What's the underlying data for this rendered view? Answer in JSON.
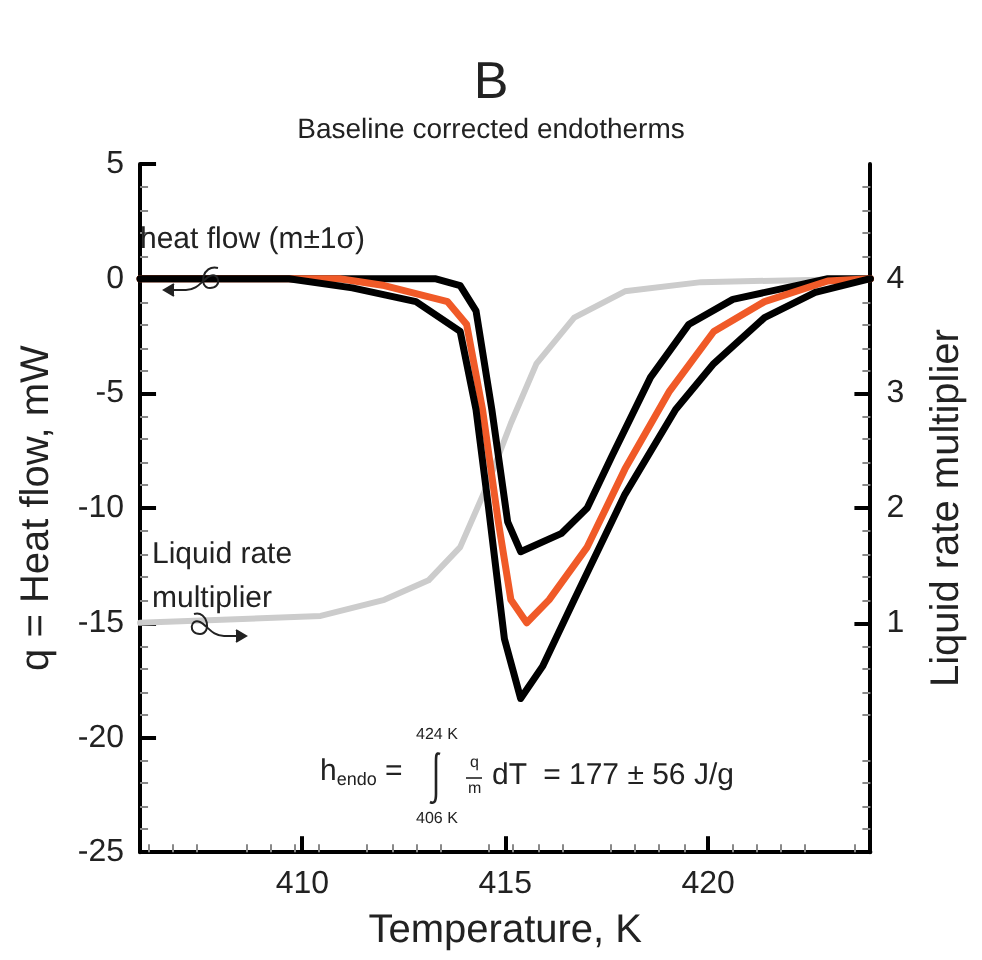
{
  "chart_data": {
    "type": "line",
    "title": "B",
    "subtitle": "Baseline corrected endotherms",
    "xlabel": "Temperature, K",
    "ylabel": "q = Heat flow, mW",
    "y2label": "Liquid rate multiplier",
    "xlim": [
      406,
      424
    ],
    "xticks": [
      410,
      415,
      420
    ],
    "ylim": [
      -25,
      5
    ],
    "yticks": [
      -25,
      -20,
      -15,
      -10,
      -5,
      0,
      5
    ],
    "y2lim": [
      -1,
      5
    ],
    "y2ticks": [
      1,
      2,
      3,
      4
    ],
    "marker": "none",
    "line_style": "solid",
    "annotations": [
      "heat flow (m±1σ)",
      "Liquid rate multiplier",
      "h$_{endo}$ =",
      "424 K",
      "406 K",
      "q",
      "m",
      "dT  = 177 ± 56 J/g"
    ],
    "series": [
      {
        "color": "#cccccc",
        "axis": "y2",
        "x": [
          406,
          410.45,
          412.02,
          413.11,
          413.89,
          414.52,
          415.14,
          415.77,
          416.7,
          417.95,
          419.83,
          424
        ],
        "values": [
          1.0,
          1.06,
          1.2,
          1.37,
          1.66,
          2.17,
          2.74,
          3.26,
          3.66,
          3.89,
          3.97,
          4.0
        ]
      },
      {
        "color": "#000000",
        "x": [
          406,
          413.27,
          413.89,
          414.28,
          414.67,
          415.06,
          415.38,
          416.39,
          417.02,
          417.64,
          418.58,
          419.52,
          420.61,
          422.17,
          422.95,
          424
        ],
        "values": [
          0,
          0,
          -0.3,
          -1.4,
          -5.7,
          -10.6,
          -11.9,
          -11.1,
          -10,
          -7.7,
          -4.3,
          -2,
          -0.9,
          -0.3,
          0,
          0
        ]
      },
      {
        "color": "#f05a28",
        "x": [
          406,
          410.92,
          412.02,
          413.58,
          414.05,
          414.44,
          414.83,
          415.14,
          415.53,
          416.08,
          417.02,
          417.95,
          419.05,
          420.14,
          421.39,
          422.95,
          424
        ],
        "values": [
          0,
          0,
          -0.3,
          -1,
          -2,
          -5.7,
          -10.6,
          -14,
          -15,
          -14,
          -11.7,
          -8.3,
          -4.9,
          -2.3,
          -1,
          -0.1,
          0
        ]
      },
      {
        "color": "#000000",
        "x": [
          406,
          409.67,
          411.23,
          412.8,
          413.89,
          414.28,
          414.59,
          414.98,
          415.38,
          415.92,
          416.7,
          417.95,
          419.2,
          420.14,
          421.39,
          422.64,
          424
        ],
        "values": [
          0,
          0,
          -0.4,
          -1,
          -2.3,
          -5.7,
          -10,
          -15.7,
          -18.3,
          -16.9,
          -14,
          -9.4,
          -5.7,
          -3.7,
          -1.7,
          -0.6,
          0
        ]
      }
    ]
  }
}
